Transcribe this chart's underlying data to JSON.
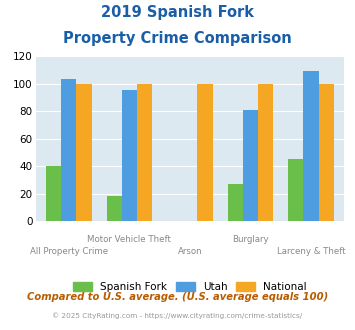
{
  "title_line1": "2019 Spanish Fork",
  "title_line2": "Property Crime Comparison",
  "categories": [
    "All Property Crime",
    "Motor Vehicle Theft",
    "Arson",
    "Burglary",
    "Larceny & Theft"
  ],
  "spanish_fork": [
    40,
    18,
    0,
    27,
    45
  ],
  "utah": [
    103,
    95,
    0,
    81,
    109
  ],
  "national": [
    100,
    100,
    100,
    100,
    100
  ],
  "color_sf": "#6abf4b",
  "color_utah": "#4d9de0",
  "color_national": "#f5a623",
  "ylim": [
    0,
    120
  ],
  "yticks": [
    0,
    20,
    40,
    60,
    80,
    100,
    120
  ],
  "bg_color": "#dce9f0",
  "legend_labels": [
    "Spanish Fork",
    "Utah",
    "National"
  ],
  "footer_text": "Compared to U.S. average. (U.S. average equals 100)",
  "copyright_text1": "© 2025 CityRating.com - ",
  "copyright_text2": "https://www.cityrating.com/crime-statistics/",
  "title_color": "#1a5ea8",
  "footer_color": "#b85c00",
  "copyright_color": "#999999",
  "copyright_link_color": "#4d9de0"
}
